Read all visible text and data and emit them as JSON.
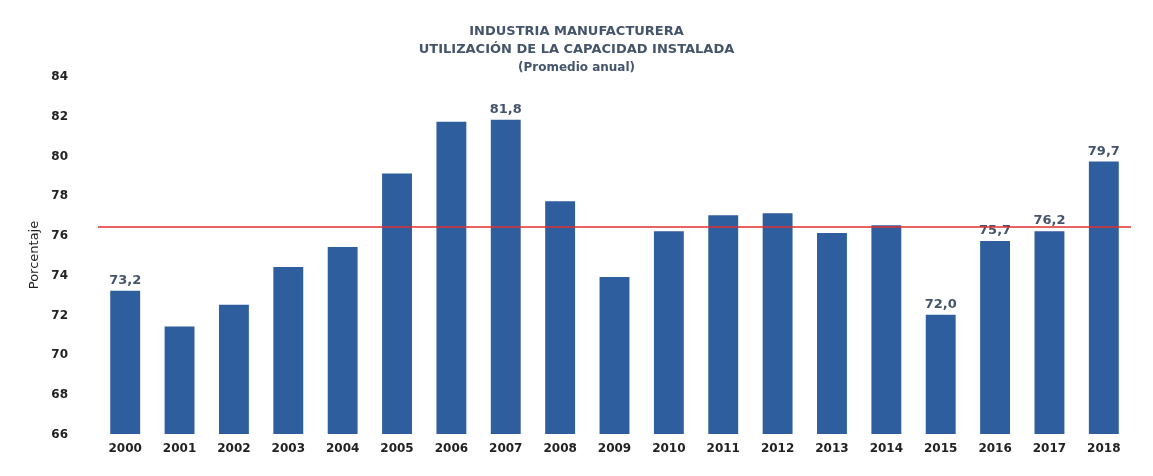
{
  "chart_data": {
    "type": "bar",
    "title": "INDUSTRIA MANUFACTURERA\nUTILIZACIÓN DE LA CAPACIDAD INSTALADA",
    "subtitle": "(Promedio anual)",
    "ylabel": "Porcentaje",
    "categories": [
      "2000",
      "2001",
      "2002",
      "2003",
      "2004",
      "2005",
      "2006",
      "2007",
      "2008",
      "2009",
      "2010",
      "2011",
      "2012",
      "2013",
      "2014",
      "2015",
      "2016",
      "2017",
      "2018"
    ],
    "values": [
      73.2,
      71.4,
      72.5,
      74.4,
      75.4,
      79.1,
      81.7,
      81.8,
      77.7,
      73.9,
      76.2,
      77.0,
      77.1,
      76.1,
      76.5,
      72.0,
      75.7,
      76.2,
      79.7
    ],
    "value_labels": [
      "73,2",
      null,
      null,
      null,
      null,
      null,
      null,
      "81,8",
      null,
      null,
      null,
      null,
      null,
      null,
      null,
      "72,0",
      "75,7",
      "76,2",
      "79,7"
    ],
    "color": "#2f5e9e",
    "ylim": [
      66,
      84
    ],
    "yticks": [
      66,
      68,
      70,
      72,
      74,
      76,
      78,
      80,
      82,
      84
    ],
    "grid": false,
    "ref_lines": [
      {
        "axis": "y",
        "value": 76.4,
        "color": "#e03030"
      }
    ]
  }
}
